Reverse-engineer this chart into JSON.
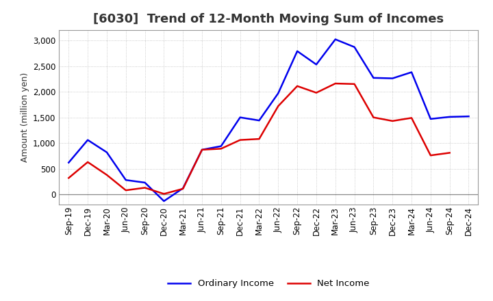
{
  "title": "[6030]  Trend of 12-Month Moving Sum of Incomes",
  "ylabel": "Amount (million yen)",
  "background_color": "#ffffff",
  "plot_bg_color": "#ffffff",
  "grid_color": "#bbbbbb",
  "frame_color": "#999999",
  "ylim": [
    -200,
    3200
  ],
  "yticks": [
    0,
    500,
    1000,
    1500,
    2000,
    2500,
    3000
  ],
  "labels": [
    "Sep-19",
    "Dec-19",
    "Mar-20",
    "Jun-20",
    "Sep-20",
    "Dec-20",
    "Mar-21",
    "Jun-21",
    "Sep-21",
    "Dec-21",
    "Mar-22",
    "Jun-22",
    "Sep-22",
    "Dec-22",
    "Mar-23",
    "Jun-23",
    "Sep-23",
    "Dec-23",
    "Mar-24",
    "Jun-24",
    "Sep-24",
    "Dec-24"
  ],
  "ordinary_income": [
    620,
    1060,
    820,
    280,
    230,
    -130,
    120,
    870,
    940,
    1500,
    1440,
    1970,
    2790,
    2530,
    3020,
    2870,
    2270,
    2260,
    2380,
    1470,
    1510,
    1520
  ],
  "net_income": [
    320,
    630,
    380,
    80,
    130,
    10,
    110,
    870,
    890,
    1060,
    1080,
    1720,
    2110,
    1980,
    2160,
    2150,
    1500,
    1430,
    1490,
    760,
    810,
    null
  ],
  "ordinary_color": "#0000ee",
  "net_color": "#dd0000",
  "legend_labels": [
    "Ordinary Income",
    "Net Income"
  ],
  "title_fontsize": 13,
  "ylabel_fontsize": 9,
  "tick_fontsize": 8.5
}
